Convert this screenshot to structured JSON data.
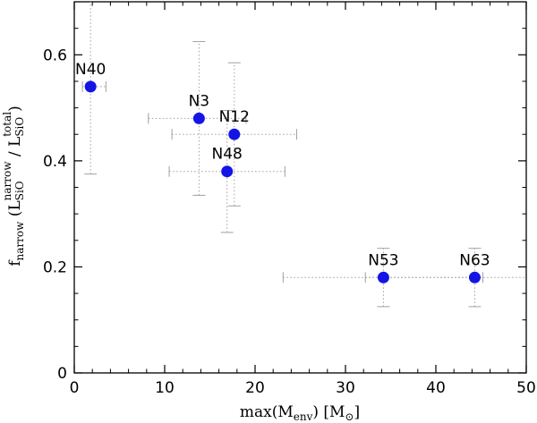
{
  "chart_data": {
    "type": "scatter",
    "title": "",
    "xlabel": "max(M",
    "xlabel_sub": "env",
    "xlabel_unit": ") [M",
    "xlabel_unit_sub": "⊙",
    "xlabel_end": "]",
    "ylabel": {
      "f": "f",
      "f_sub": "narrow",
      "open": " (L",
      "num_sub": "SiO",
      "num_sup": "narrow",
      "slash": " / L",
      "den_sub": "SiO",
      "den_sup": "total",
      "close": ")"
    },
    "xlim": [
      0,
      50
    ],
    "ylim": [
      0,
      0.7
    ],
    "xticks": [
      0,
      10,
      20,
      30,
      40,
      50
    ],
    "yticks": [
      0,
      0.2,
      0.4,
      0.6
    ],
    "xtick_labels": [
      "0",
      "10",
      "20",
      "30",
      "40",
      "50"
    ],
    "ytick_labels": [
      "0",
      "0.2",
      "0.4",
      "0.6"
    ],
    "marker_color": "#1414e6",
    "errorbar_color": "#a0a0a0",
    "points": [
      {
        "label": "N40",
        "x": 1.8,
        "y": 0.54,
        "xerr": [
          0.9,
          3.5
        ],
        "yerr": [
          0.375,
          0.7
        ]
      },
      {
        "label": "N3",
        "x": 13.8,
        "y": 0.48,
        "xerr": [
          8.2,
          19.0
        ],
        "yerr": [
          0.335,
          0.625
        ]
      },
      {
        "label": "N12",
        "x": 17.7,
        "y": 0.45,
        "xerr": [
          10.8,
          24.6
        ],
        "yerr": [
          0.315,
          0.585
        ]
      },
      {
        "label": "N48",
        "x": 16.9,
        "y": 0.38,
        "xerr": [
          10.5,
          23.3
        ],
        "yerr": [
          0.265,
          0.495
        ]
      },
      {
        "label": "N53",
        "x": 34.2,
        "y": 0.18,
        "xerr": [
          23.1,
          45.2
        ],
        "yerr": [
          0.125,
          0.235
        ]
      },
      {
        "label": "N63",
        "x": 44.3,
        "y": 0.18,
        "xerr": [
          32.2,
          50
        ],
        "yerr": [
          0.125,
          0.235
        ]
      }
    ]
  }
}
